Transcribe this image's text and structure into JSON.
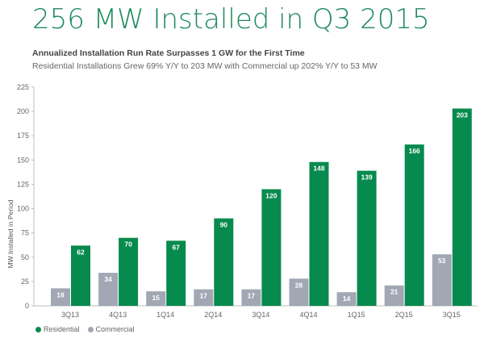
{
  "header": {
    "title": "256 MW Installed in Q3 2015",
    "subtitle": "Annualized Installation Run Rate Surpasses 1 GW for the First Time",
    "description": "Residential Installations Grew 69% Y/Y to 203 MW with Commercial up 202% Y/Y to 53 MW"
  },
  "colors": {
    "residential": "#078a4e",
    "commercial": "#a1a8b4",
    "axis": "#cccccc"
  },
  "chart_data": {
    "type": "bar",
    "title": "256 MW Installed in Q3 2015",
    "xlabel": "",
    "ylabel": "MW Installed in Period",
    "ylim": [
      0,
      225
    ],
    "yticks": [
      0,
      25,
      50,
      75,
      100,
      125,
      150,
      175,
      200,
      225
    ],
    "categories": [
      "3Q13",
      "4Q13",
      "1Q14",
      "2Q14",
      "3Q14",
      "4Q14",
      "1Q15",
      "2Q15",
      "3Q15"
    ],
    "series": [
      {
        "name": "Commercial",
        "values": [
          18,
          34,
          15,
          17,
          17,
          28,
          14,
          21,
          53
        ]
      },
      {
        "name": "Residential",
        "values": [
          62,
          70,
          67,
          90,
          120,
          148,
          139,
          166,
          203
        ]
      }
    ],
    "grid": false,
    "legend": "bottom-left"
  },
  "legend": {
    "items": [
      {
        "label": "Residential"
      },
      {
        "label": "Commercial"
      }
    ]
  }
}
